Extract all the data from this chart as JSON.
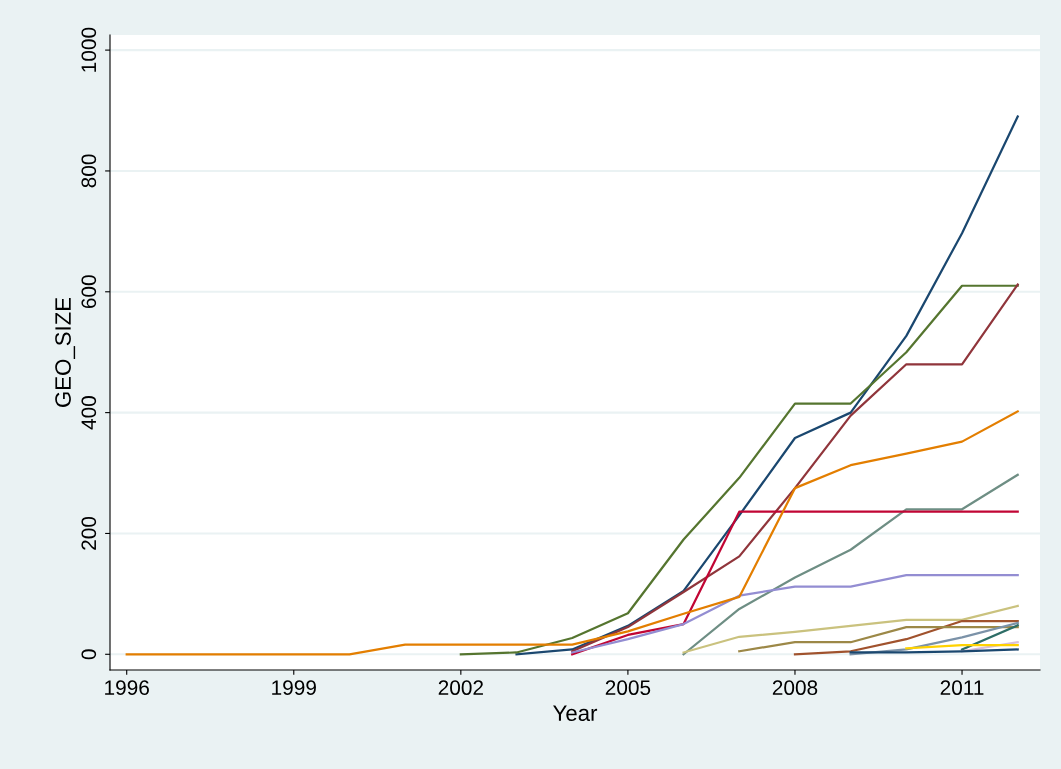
{
  "chart_data": {
    "type": "line",
    "xlabel": "Year",
    "ylabel": "GEO_SIZE",
    "x": [
      1996,
      1997,
      1998,
      1999,
      2000,
      2001,
      2002,
      2003,
      2004,
      2005,
      2006,
      2007,
      2008,
      2009,
      2010,
      2011,
      2012
    ],
    "xlim": [
      1995.7,
      2012.4
    ],
    "xticks": [
      1996,
      1999,
      2002,
      2005,
      2008,
      2011
    ],
    "ylim": [
      -26,
      1025
    ],
    "yticks": [
      0,
      200,
      400,
      600,
      800,
      1000
    ],
    "grid": "y",
    "legend": false,
    "marker": "none",
    "line_style": "solid",
    "series": [
      {
        "color": "#1a476f",
        "values": [
          null,
          null,
          null,
          null,
          null,
          null,
          null,
          0,
          8,
          47,
          105,
          230,
          358,
          400,
          527,
          697,
          890
        ]
      },
      {
        "color": "#55752f",
        "values": [
          null,
          null,
          null,
          null,
          null,
          null,
          0,
          3,
          27,
          68,
          190,
          292,
          415,
          415,
          500,
          610,
          610
        ]
      },
      {
        "color": "#90353b",
        "values": [
          null,
          null,
          null,
          null,
          null,
          null,
          null,
          null,
          5,
          45,
          103,
          162,
          275,
          395,
          480,
          480,
          612
        ]
      },
      {
        "color": "#6e8e84",
        "values": [
          null,
          null,
          null,
          null,
          null,
          null,
          null,
          null,
          null,
          null,
          0,
          75,
          127,
          173,
          240,
          240,
          297
        ]
      },
      {
        "color": "#c10534",
        "values": [
          null,
          null,
          null,
          null,
          null,
          null,
          null,
          null,
          0,
          32,
          50,
          236,
          236,
          236,
          236,
          236,
          236
        ]
      },
      {
        "color": "#938dd2",
        "values": [
          null,
          null,
          null,
          null,
          null,
          null,
          null,
          null,
          3,
          25,
          50,
          97,
          112,
          112,
          131,
          131,
          131
        ]
      },
      {
        "color": "#cac27e",
        "values": [
          null,
          null,
          null,
          null,
          null,
          null,
          null,
          null,
          null,
          null,
          3,
          29,
          37,
          47,
          57,
          57,
          80
        ]
      },
      {
        "color": "#a0522d",
        "values": [
          null,
          null,
          null,
          null,
          null,
          null,
          null,
          null,
          null,
          null,
          null,
          null,
          0,
          5,
          25,
          55,
          55
        ]
      },
      {
        "color": "#9c8847",
        "values": [
          null,
          null,
          null,
          null,
          null,
          null,
          null,
          null,
          null,
          null,
          null,
          5,
          20,
          20,
          45,
          45,
          45
        ]
      },
      {
        "color": "#7b92a8",
        "values": [
          null,
          null,
          null,
          null,
          null,
          null,
          null,
          null,
          null,
          null,
          null,
          null,
          null,
          0,
          8,
          28,
          52
        ]
      },
      {
        "color": "#2d6d66",
        "values": [
          null,
          null,
          null,
          null,
          null,
          null,
          null,
          null,
          null,
          null,
          null,
          null,
          null,
          null,
          null,
          8,
          48
        ]
      },
      {
        "color": "#d8bfd8",
        "values": [
          null,
          null,
          null,
          null,
          null,
          null,
          null,
          null,
          null,
          null,
          null,
          null,
          null,
          null,
          null,
          5,
          20
        ]
      },
      {
        "color": "#ffd200",
        "values": [
          null,
          null,
          null,
          null,
          null,
          null,
          null,
          null,
          null,
          null,
          null,
          null,
          null,
          null,
          10,
          15,
          15
        ]
      },
      {
        "color": "#1a476f",
        "values": [
          null,
          null,
          null,
          null,
          null,
          null,
          null,
          null,
          null,
          null,
          null,
          null,
          null,
          3,
          3,
          5,
          8
        ]
      },
      {
        "color": "#e37e00",
        "values": [
          0,
          0,
          0,
          0,
          0,
          16,
          16,
          16,
          16,
          38,
          67,
          95,
          275,
          313,
          332,
          352,
          402
        ]
      }
    ]
  }
}
